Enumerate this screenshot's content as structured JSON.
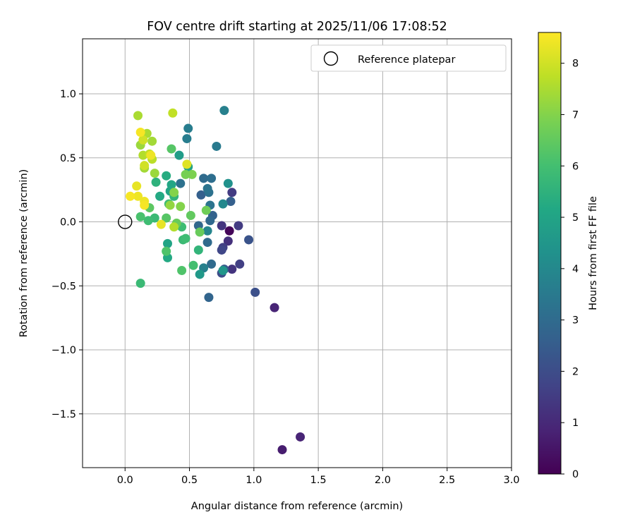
{
  "chart_data": {
    "type": "scatter",
    "title": "FOV centre drift starting at 2025/11/06 17:08:52",
    "xlabel": "Angular distance from reference (arcmin)",
    "ylabel": "Rotation from reference (arcmin)",
    "xlim": [
      -0.33,
      3.0
    ],
    "ylim": [
      -1.92,
      1.43
    ],
    "xticks": [
      0.0,
      0.5,
      1.0,
      1.5,
      2.0,
      2.5,
      3.0
    ],
    "xtick_labels": [
      "0.0",
      "0.5",
      "1.0",
      "1.5",
      "2.0",
      "2.5",
      "3.0"
    ],
    "yticks": [
      -1.5,
      -1.0,
      -0.5,
      0.0,
      0.5,
      1.0
    ],
    "ytick_labels": [
      "−1.5",
      "−1.0",
      "−0.5",
      "0.0",
      "0.5",
      "1.0"
    ],
    "grid": true,
    "legend": {
      "position": "top-right",
      "entries": [
        "Reference platepar"
      ]
    },
    "reference_point": {
      "x": 0.0,
      "y": 0.0,
      "label": "Reference platepar"
    },
    "colorbar": {
      "label": "Hours from first FF file",
      "colormap": "viridis",
      "range": [
        0,
        8.6
      ],
      "ticks": [
        0,
        1,
        2,
        3,
        4,
        5,
        6,
        7,
        8
      ],
      "tick_labels": [
        "0",
        "1",
        "2",
        "3",
        "4",
        "5",
        "6",
        "7",
        "8"
      ]
    },
    "points": [
      [
        0.81,
        -0.07,
        0.1
      ],
      [
        1.22,
        -1.78,
        0.7
      ],
      [
        1.36,
        -1.68,
        0.9
      ],
      [
        1.16,
        -0.67,
        0.9
      ],
      [
        0.83,
        -0.37,
        1.3
      ],
      [
        0.8,
        -0.15,
        1.2
      ],
      [
        0.75,
        -0.03,
        1.3
      ],
      [
        0.88,
        -0.03,
        1.5
      ],
      [
        0.76,
        -0.2,
        1.6
      ],
      [
        0.89,
        -0.33,
        1.6
      ],
      [
        0.83,
        0.23,
        1.5
      ],
      [
        1.01,
        -0.55,
        2.1
      ],
      [
        0.96,
        -0.14,
        2.2
      ],
      [
        0.75,
        -0.4,
        2.0
      ],
      [
        0.77,
        -0.37,
        2.4
      ],
      [
        0.75,
        -0.22,
        1.8
      ],
      [
        0.65,
        -0.59,
        2.8
      ],
      [
        0.67,
        -0.33,
        3.0
      ],
      [
        0.82,
        0.16,
        2.6
      ],
      [
        0.68,
        0.05,
        2.7
      ],
      [
        0.66,
        0.01,
        2.9
      ],
      [
        0.64,
        -0.16,
        3.0
      ],
      [
        0.59,
        0.21,
        2.6
      ],
      [
        0.57,
        -0.03,
        2.9
      ],
      [
        0.61,
        0.34,
        3.0
      ],
      [
        0.67,
        0.34,
        3.1
      ],
      [
        0.65,
        0.23,
        3.2
      ],
      [
        0.64,
        0.26,
        3.3
      ],
      [
        0.66,
        0.13,
        3.3
      ],
      [
        0.71,
        0.59,
        3.5
      ],
      [
        0.77,
        0.87,
        3.7
      ],
      [
        0.48,
        0.65,
        3.6
      ],
      [
        0.49,
        0.73,
        3.6
      ],
      [
        0.43,
        0.3,
        3.2
      ],
      [
        0.61,
        -0.36,
        3.7
      ],
      [
        0.64,
        -0.07,
        3.9
      ],
      [
        0.76,
        0.14,
        4.0
      ],
      [
        0.8,
        0.3,
        4.3
      ],
      [
        0.42,
        0.52,
        4.7
      ],
      [
        0.49,
        0.43,
        4.9
      ],
      [
        0.58,
        -0.41,
        4.6
      ],
      [
        0.76,
        -0.38,
        4.5
      ],
      [
        0.33,
        -0.17,
        5.0
      ],
      [
        0.33,
        -0.28,
        5.2
      ],
      [
        0.35,
        0.24,
        5.0
      ],
      [
        0.36,
        0.29,
        5.1
      ],
      [
        0.32,
        0.36,
        5.3
      ],
      [
        0.27,
        0.2,
        5.2
      ],
      [
        0.24,
        0.31,
        5.5
      ],
      [
        0.38,
        0.2,
        5.6
      ],
      [
        0.34,
        0.14,
        5.9
      ],
      [
        0.44,
        -0.04,
        5.9
      ],
      [
        0.45,
        -0.14,
        5.8
      ],
      [
        0.47,
        -0.13,
        5.9
      ],
      [
        0.57,
        -0.22,
        5.6
      ],
      [
        0.44,
        -0.38,
        6.2
      ],
      [
        0.53,
        -0.34,
        6.0
      ],
      [
        0.23,
        0.03,
        5.8
      ],
      [
        0.18,
        0.01,
        5.9
      ],
      [
        0.12,
        0.04,
        6.1
      ],
      [
        0.12,
        -0.48,
        5.8
      ],
      [
        0.32,
        -0.23,
        6.2
      ],
      [
        0.36,
        0.57,
        6.3
      ],
      [
        0.19,
        0.11,
        6.4
      ],
      [
        0.32,
        0.03,
        6.3
      ],
      [
        0.4,
        -0.01,
        6.6
      ],
      [
        0.51,
        0.05,
        6.5
      ],
      [
        0.58,
        -0.08,
        6.6
      ],
      [
        0.63,
        0.09,
        6.7
      ],
      [
        0.52,
        0.37,
        6.9
      ],
      [
        0.47,
        0.37,
        6.8
      ],
      [
        0.43,
        0.12,
        7.0
      ],
      [
        0.38,
        0.23,
        7.0
      ],
      [
        0.35,
        0.13,
        7.2
      ],
      [
        0.23,
        0.38,
        7.3
      ],
      [
        0.15,
        0.42,
        7.4
      ],
      [
        0.12,
        0.6,
        7.3
      ],
      [
        0.17,
        0.69,
        7.5
      ],
      [
        0.21,
        0.63,
        7.4
      ],
      [
        0.14,
        0.52,
        7.6
      ],
      [
        0.21,
        0.49,
        7.7
      ],
      [
        0.1,
        0.83,
        7.5
      ],
      [
        0.19,
        0.53,
        7.8
      ],
      [
        0.38,
        -0.04,
        7.6
      ],
      [
        0.14,
        0.64,
        8.0
      ],
      [
        0.37,
        0.85,
        7.8
      ],
      [
        0.15,
        0.44,
        8.0
      ],
      [
        0.09,
        0.28,
        8.3
      ],
      [
        0.1,
        0.2,
        8.4
      ],
      [
        0.04,
        0.2,
        8.5
      ],
      [
        0.15,
        0.16,
        8.4
      ],
      [
        0.15,
        0.13,
        8.5
      ],
      [
        0.28,
        -0.02,
        8.3
      ],
      [
        0.2,
        0.52,
        8.4
      ],
      [
        0.12,
        0.7,
        8.5
      ],
      [
        0.48,
        0.45,
        8.2
      ]
    ]
  }
}
